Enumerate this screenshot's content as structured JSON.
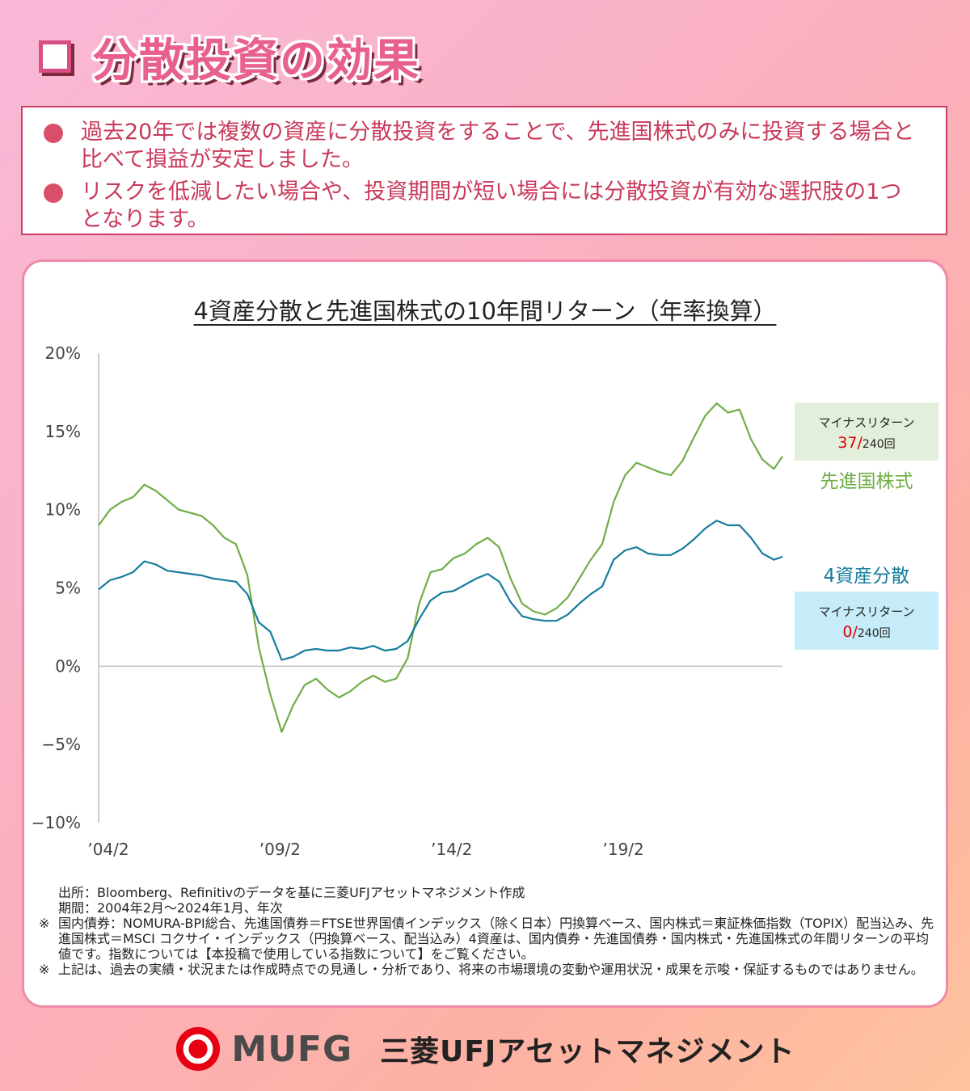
{
  "header": {
    "title": "分散投資の効果"
  },
  "summary": [
    "過去20年では複数の資産に分散投資をすることで、先進国株式のみに投資する場合と比べて損益が安定しました。",
    "リスクを低減したい場合や、投資期間が短い場合には分散投資が有効な選択肢の1つとなります。"
  ],
  "chart_data": {
    "type": "line",
    "title": "4資産分散と先進国株式の10年間リターン（年率換算）",
    "xlabel": "",
    "ylabel": "",
    "ylim": [
      -10,
      20
    ],
    "y_ticks": [
      "20%",
      "15%",
      "10%",
      "5%",
      "0%",
      "−5%",
      "−10%"
    ],
    "x_ticks": [
      "’04/2",
      "’09/2",
      "’14/2",
      "’19/2"
    ],
    "x_period": "2004-02 to 2024-01, monthly",
    "series": [
      {
        "name": "先進国株式",
        "color": "#70ad47",
        "x": [
          "2004-02",
          "2004-06",
          "2004-10",
          "2005-02",
          "2005-06",
          "2005-10",
          "2006-02",
          "2006-06",
          "2006-10",
          "2007-02",
          "2007-06",
          "2007-10",
          "2008-02",
          "2008-06",
          "2008-10",
          "2009-02",
          "2009-06",
          "2009-10",
          "2010-02",
          "2010-06",
          "2010-10",
          "2011-02",
          "2011-06",
          "2011-10",
          "2012-02",
          "2012-06",
          "2012-10",
          "2013-02",
          "2013-06",
          "2013-10",
          "2014-02",
          "2014-06",
          "2014-10",
          "2015-02",
          "2015-06",
          "2015-10",
          "2016-02",
          "2016-06",
          "2016-10",
          "2017-02",
          "2017-06",
          "2017-10",
          "2018-02",
          "2018-06",
          "2018-10",
          "2019-02",
          "2019-06",
          "2019-10",
          "2020-02",
          "2020-06",
          "2020-10",
          "2021-02",
          "2021-06",
          "2021-10",
          "2022-02",
          "2022-06",
          "2022-10",
          "2023-02",
          "2023-06",
          "2023-10",
          "2024-01"
        ],
        "values": [
          9.0,
          10.0,
          10.5,
          10.8,
          11.6,
          11.2,
          10.6,
          10.0,
          9.8,
          9.6,
          9.0,
          8.2,
          7.8,
          5.8,
          1.2,
          -1.8,
          -4.2,
          -2.5,
          -1.2,
          -0.8,
          -1.5,
          -2.0,
          -1.6,
          -1.0,
          -0.6,
          -1.0,
          -0.8,
          0.5,
          4.0,
          6.0,
          6.2,
          6.9,
          7.2,
          7.8,
          8.2,
          7.6,
          5.6,
          4.0,
          3.5,
          3.3,
          3.7,
          4.4,
          5.6,
          6.8,
          7.8,
          10.5,
          12.2,
          13.0,
          12.7,
          12.4,
          12.2,
          13.1,
          14.6,
          16.0,
          16.8,
          16.2,
          16.4,
          14.5,
          13.2,
          12.6,
          13.4
        ]
      },
      {
        "name": "4資産分散",
        "color": "#167c9e",
        "x": [
          "2004-02",
          "2004-06",
          "2004-10",
          "2005-02",
          "2005-06",
          "2005-10",
          "2006-02",
          "2006-06",
          "2006-10",
          "2007-02",
          "2007-06",
          "2007-10",
          "2008-02",
          "2008-06",
          "2008-10",
          "2009-02",
          "2009-06",
          "2009-10",
          "2010-02",
          "2010-06",
          "2010-10",
          "2011-02",
          "2011-06",
          "2011-10",
          "2012-02",
          "2012-06",
          "2012-10",
          "2013-02",
          "2013-06",
          "2013-10",
          "2014-02",
          "2014-06",
          "2014-10",
          "2015-02",
          "2015-06",
          "2015-10",
          "2016-02",
          "2016-06",
          "2016-10",
          "2017-02",
          "2017-06",
          "2017-10",
          "2018-02",
          "2018-06",
          "2018-10",
          "2019-02",
          "2019-06",
          "2019-10",
          "2020-02",
          "2020-06",
          "2020-10",
          "2021-02",
          "2021-06",
          "2021-10",
          "2022-02",
          "2022-06",
          "2022-10",
          "2023-02",
          "2023-06",
          "2023-10",
          "2024-01"
        ],
        "values": [
          4.9,
          5.5,
          5.7,
          6.0,
          6.7,
          6.5,
          6.1,
          6.0,
          5.9,
          5.8,
          5.6,
          5.5,
          5.4,
          4.6,
          2.8,
          2.2,
          0.4,
          0.6,
          1.0,
          1.1,
          1.0,
          1.0,
          1.2,
          1.1,
          1.3,
          1.0,
          1.1,
          1.6,
          3.0,
          4.2,
          4.7,
          4.8,
          5.2,
          5.6,
          5.9,
          5.4,
          4.1,
          3.2,
          3.0,
          2.9,
          2.9,
          3.3,
          4.0,
          4.6,
          5.1,
          6.8,
          7.4,
          7.6,
          7.2,
          7.1,
          7.1,
          7.5,
          8.1,
          8.8,
          9.3,
          9.0,
          9.0,
          8.2,
          7.2,
          6.8,
          7.0
        ]
      }
    ],
    "annotations": [
      {
        "name": "先進国株式",
        "label": "マイナスリターン",
        "count": "37/",
        "total": "240回",
        "bg": "#e2efda",
        "color": "#70ad47"
      },
      {
        "name": "4資産分散",
        "label": "マイナスリターン",
        "count": "0/",
        "total": "240回",
        "bg": "#c5ecf8",
        "color": "#167c9e"
      }
    ],
    "legend": "right",
    "grid": false
  },
  "notes": {
    "source": "出所：Bloomberg、Refinitivのデータを基に三菱UFJアセットマネジメント作成",
    "period": "期間：2004年2月～2024年1月、年次",
    "note1": "国内債券：NOMURA-BPI総合、先進国債券＝FTSE世界国債インデックス（除く日本）円換算ベース、国内株式＝東証株価指数（TOPIX）配当込み、先進国株式＝MSCI コクサイ・インデックス（円換算ベース、配当込み）4資産は、国内債券・先進国債券・国内株式・先進国株式の年間リターンの平均値です。指数については【本投稿で使用している指数について】をご覧ください。",
    "note2": "上記は、過去の実績・状況または作成時点での見通し・分析であり、将来の市場環境の変動や運用状況・成果を示唆・保証するものではありません。",
    "mark": "※"
  },
  "footer": {
    "brand": "MUFG",
    "company": "三菱UFJアセットマネジメント"
  }
}
